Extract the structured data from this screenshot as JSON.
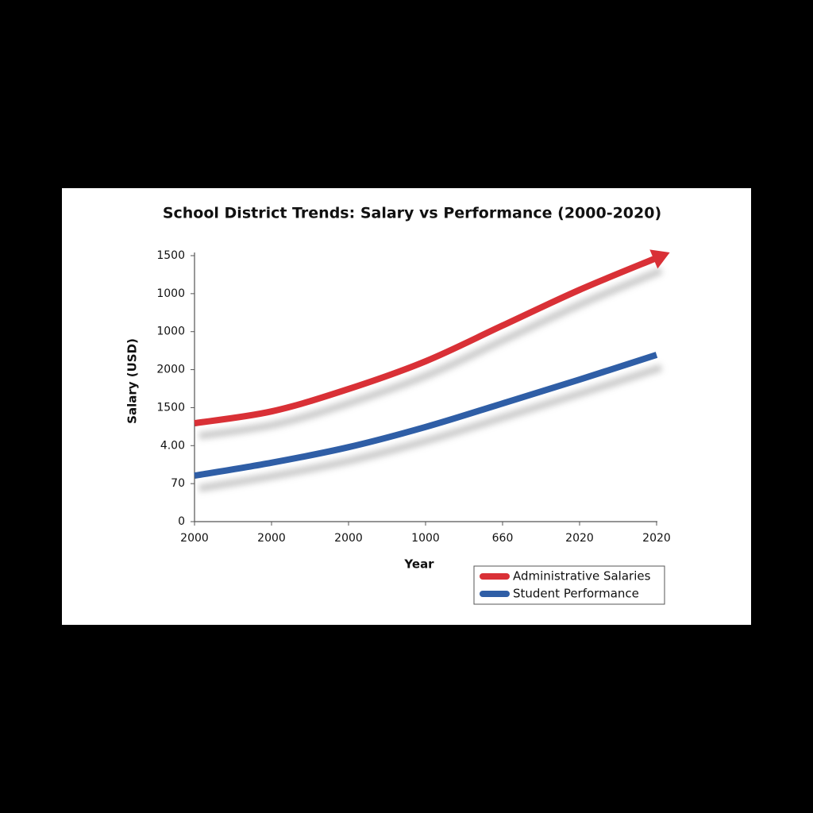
{
  "chart_data": {
    "type": "line",
    "title": "School District Trends: Salary vs Performance (2000-2020)",
    "xlabel": "Year",
    "ylabel": "Salary (USD)",
    "categories": [
      "2000",
      "2000",
      "2000",
      "1000",
      "660",
      "2020",
      "2020"
    ],
    "series": [
      {
        "name": "Administrative Salaries",
        "color": "#d93036",
        "values": [
          2.59,
          2.9,
          3.49,
          4.22,
          5.16,
          6.1,
          6.94
        ]
      },
      {
        "name": "Student Performance",
        "color": "#2f5ea6",
        "values": [
          1.21,
          1.55,
          1.96,
          2.49,
          3.11,
          3.74,
          4.39
        ]
      }
    ],
    "ylim": [
      0,
      7
    ],
    "yticks": [
      0,
      {
        "value": 1,
        "label": "70"
      },
      {
        "value": 2,
        "label": "4.00"
      },
      {
        "value": 3,
        "label": "1500"
      },
      {
        "value": 4,
        "label": "2000"
      },
      {
        "value": 5,
        "label": "1000"
      },
      {
        "value": 6,
        "label": "1000"
      },
      {
        "value": 7,
        "label": "1500"
      }
    ],
    "grid": false,
    "legend": "lower right"
  }
}
